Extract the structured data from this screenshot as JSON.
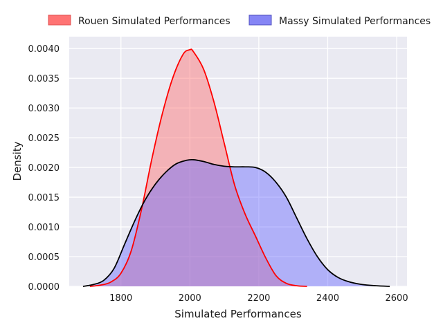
{
  "chart_data": {
    "type": "area",
    "title": "",
    "xlabel": "Simulated Performances",
    "ylabel": "Density",
    "xlim": [
      1650,
      2630
    ],
    "ylim": [
      0,
      0.0042
    ],
    "xticks": [
      1800,
      2000,
      2200,
      2400,
      2600
    ],
    "yticks": [
      0.0,
      0.0005,
      0.001,
      0.0015,
      0.002,
      0.0025,
      0.003,
      0.0035,
      0.004
    ],
    "ytick_labels": [
      "0.0000",
      "0.0005",
      "0.0010",
      "0.0015",
      "0.0020",
      "0.0025",
      "0.0030",
      "0.0035",
      "0.0040"
    ],
    "grid": true,
    "legend_position": "top",
    "series": [
      {
        "name": "Rouen Simulated Performances",
        "line_color": "#ff0000",
        "fill_color": "#ff6f6f",
        "fill_opacity": 0.45,
        "points": [
          [
            1710,
            0.0
          ],
          [
            1740,
            2e-05
          ],
          [
            1770,
            7e-05
          ],
          [
            1800,
            0.00022
          ],
          [
            1830,
            0.0006
          ],
          [
            1860,
            0.0013
          ],
          [
            1890,
            0.00215
          ],
          [
            1920,
            0.0029
          ],
          [
            1950,
            0.0035
          ],
          [
            1980,
            0.0039
          ],
          [
            2000,
            0.00398
          ],
          [
            2010,
            0.00395
          ],
          [
            2040,
            0.00365
          ],
          [
            2070,
            0.0031
          ],
          [
            2100,
            0.0024
          ],
          [
            2130,
            0.0017
          ],
          [
            2160,
            0.00122
          ],
          [
            2190,
            0.00085
          ],
          [
            2220,
            0.00048
          ],
          [
            2250,
            0.00018
          ],
          [
            2280,
            5e-05
          ],
          [
            2310,
            1e-05
          ],
          [
            2340,
            0.0
          ]
        ]
      },
      {
        "name": "Massy Simulated Performances",
        "line_color": "#000000",
        "fill_color": "#6b6bff",
        "fill_opacity": 0.45,
        "points": [
          [
            1690,
            0.0
          ],
          [
            1720,
            3e-05
          ],
          [
            1750,
            0.0001
          ],
          [
            1780,
            0.0003
          ],
          [
            1810,
            0.0007
          ],
          [
            1840,
            0.0011
          ],
          [
            1870,
            0.00145
          ],
          [
            1900,
            0.00172
          ],
          [
            1930,
            0.00192
          ],
          [
            1960,
            0.00206
          ],
          [
            1990,
            0.00212
          ],
          [
            2010,
            0.00213
          ],
          [
            2040,
            0.0021
          ],
          [
            2070,
            0.00205
          ],
          [
            2100,
            0.00202
          ],
          [
            2130,
            0.00201
          ],
          [
            2160,
            0.00201
          ],
          [
            2190,
            0.002
          ],
          [
            2220,
            0.00192
          ],
          [
            2250,
            0.00175
          ],
          [
            2280,
            0.0015
          ],
          [
            2310,
            0.00115
          ],
          [
            2340,
            0.0008
          ],
          [
            2370,
            0.0005
          ],
          [
            2400,
            0.00028
          ],
          [
            2430,
            0.00015
          ],
          [
            2460,
            8e-05
          ],
          [
            2500,
            3e-05
          ],
          [
            2540,
            1e-05
          ],
          [
            2580,
            0.0
          ]
        ]
      }
    ]
  }
}
